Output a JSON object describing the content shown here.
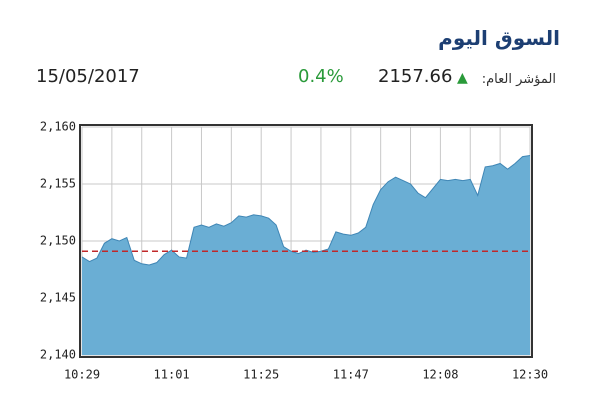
{
  "header": {
    "title": "السوق اليوم",
    "index_label": "المؤشر العام:",
    "index_value": "2157.66",
    "change": "0.4%",
    "date": "15/05/2017"
  },
  "chart_data": {
    "type": "area",
    "categories": [
      "10:29",
      null,
      null,
      null,
      null,
      null,
      null,
      null,
      null,
      null,
      null,
      null,
      "11:01",
      null,
      null,
      null,
      null,
      null,
      null,
      null,
      null,
      null,
      null,
      null,
      "11:25",
      null,
      null,
      null,
      null,
      null,
      null,
      null,
      null,
      null,
      null,
      null,
      "11:47",
      null,
      null,
      null,
      null,
      null,
      null,
      null,
      null,
      null,
      null,
      null,
      "12:08",
      null,
      null,
      null,
      null,
      null,
      null,
      null,
      null,
      null,
      null,
      null,
      "12:30"
    ],
    "values": [
      2148.6,
      2148.2,
      2148.5,
      2149.8,
      2150.2,
      2150,
      2150.3,
      2148.3,
      2148,
      2147.9,
      2148.1,
      2148.8,
      2149.2,
      2148.6,
      2148.5,
      2151.2,
      2151.4,
      2151.2,
      2151.5,
      2151.3,
      2151.6,
      2152.2,
      2152.1,
      2152.3,
      2152.2,
      2152,
      2151.4,
      2149.5,
      2149.1,
      2148.9,
      2149.2,
      2149,
      2149.1,
      2149.3,
      2150.8,
      2150.6,
      2150.5,
      2150.7,
      2151.2,
      2153.2,
      2154.5,
      2155.2,
      2155.6,
      2155.3,
      2155,
      2154.2,
      2153.8,
      2154.6,
      2155.4,
      2155.3,
      2155.4,
      2155.3,
      2155.4,
      2154,
      2156.5,
      2156.6,
      2156.8,
      2156.3,
      2156.8,
      2157.4,
      2157.5
    ],
    "color": "#6aaed4",
    "line_color": "#3f86b5",
    "reference_line": 2149.1,
    "reference_color": "#c0282a",
    "ylim": [
      2140,
      2160
    ],
    "yticks": [
      {
        "value": 2140,
        "label": "2,140"
      },
      {
        "value": 2145,
        "label": "2,145"
      },
      {
        "value": 2150,
        "label": "2,150"
      },
      {
        "value": 2155,
        "label": "2,155"
      },
      {
        "value": 2160,
        "label": "2,160"
      }
    ],
    "grid": true
  }
}
